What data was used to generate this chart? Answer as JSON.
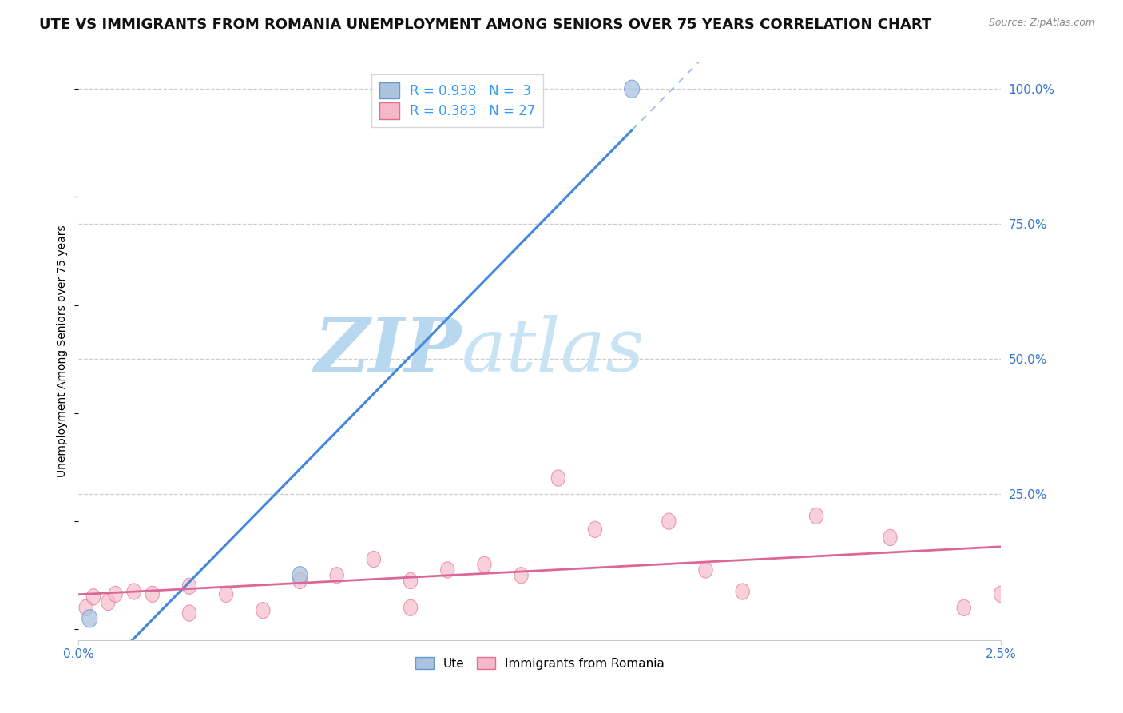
{
  "title": "UTE VS IMMIGRANTS FROM ROMANIA UNEMPLOYMENT AMONG SENIORS OVER 75 YEARS CORRELATION CHART",
  "source": "Source: ZipAtlas.com",
  "ylabel": "Unemployment Among Seniors over 75 years",
  "background_color": "#ffffff",
  "grid_color": "#cccccc",
  "ute_fill_color": "#aac4e0",
  "ute_edge_color": "#6699cc",
  "romania_fill_color": "#f5b8c8",
  "romania_edge_color": "#e07090",
  "ute_R": 0.938,
  "ute_N": 3,
  "romania_R": 0.383,
  "romania_N": 27,
  "ute_line_color": "#4488dd",
  "romania_line_color": "#dd6699",
  "legend_color": "#3399ff",
  "xlim": [
    0.0,
    0.025
  ],
  "ylim": [
    -0.02,
    1.05
  ],
  "y_ticks": [
    0.0,
    0.25,
    0.5,
    0.75,
    1.0
  ],
  "y_tick_labels": [
    "",
    "25.0%",
    "50.0%",
    "75.0%",
    "100.0%"
  ],
  "x_ticks": [
    0.0,
    0.025
  ],
  "x_tick_labels": [
    "0.0%",
    "2.5%"
  ],
  "ute_points_x": [
    0.0003,
    0.006,
    0.015
  ],
  "ute_points_y": [
    0.02,
    0.1,
    1.0
  ],
  "romania_points_x": [
    0.0002,
    0.0004,
    0.0008,
    0.001,
    0.0015,
    0.002,
    0.003,
    0.003,
    0.004,
    0.005,
    0.006,
    0.007,
    0.008,
    0.009,
    0.009,
    0.01,
    0.011,
    0.012,
    0.013,
    0.014,
    0.016,
    0.017,
    0.018,
    0.02,
    0.022,
    0.024,
    0.025
  ],
  "romania_points_y": [
    0.04,
    0.06,
    0.05,
    0.065,
    0.07,
    0.065,
    0.08,
    0.03,
    0.065,
    0.035,
    0.09,
    0.1,
    0.13,
    0.04,
    0.09,
    0.11,
    0.12,
    0.1,
    0.28,
    0.185,
    0.2,
    0.11,
    0.07,
    0.21,
    0.17,
    0.04,
    0.065
  ],
  "watermark_zip": "ZIP",
  "watermark_atlas": "atlas",
  "title_fontsize": 13,
  "axis_label_fontsize": 10,
  "tick_fontsize": 11,
  "legend_fontsize": 12
}
